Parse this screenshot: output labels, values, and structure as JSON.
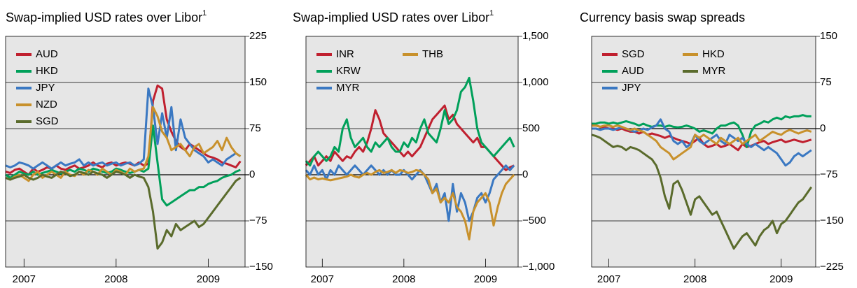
{
  "chart_data": [
    {
      "type": "line",
      "title": "Swap-implied USD rates over Libor",
      "title_note": "1",
      "x": [
        2006.8,
        2006.85,
        2006.9,
        2006.95,
        2007,
        2007.05,
        2007.1,
        2007.15,
        2007.2,
        2007.25,
        2007.3,
        2007.35,
        2007.4,
        2007.45,
        2007.5,
        2007.55,
        2007.6,
        2007.65,
        2007.7,
        2007.75,
        2007.8,
        2007.85,
        2007.9,
        2007.95,
        2008,
        2008.05,
        2008.1,
        2008.15,
        2008.2,
        2008.25,
        2008.3,
        2008.35,
        2008.4,
        2008.45,
        2008.5,
        2008.55,
        2008.6,
        2008.65,
        2008.7,
        2008.75,
        2008.8,
        2008.85,
        2008.9,
        2008.95,
        2009,
        2009.05,
        2009.1,
        2009.15,
        2009.2,
        2009.25,
        2009.3,
        2009.35
      ],
      "xlim": [
        2006.8,
        2009.4
      ],
      "xticks": [
        2007,
        2008,
        2009
      ],
      "ylim": [
        -150,
        225
      ],
      "yticks": [
        {
          "value": -150,
          "label": "−150"
        },
        {
          "value": -75,
          "label": "−75"
        },
        0,
        75,
        150,
        225
      ],
      "series": [
        {
          "name": "AUD",
          "color": "#c0202f",
          "values": [
            5,
            3,
            8,
            10,
            5,
            0,
            10,
            5,
            8,
            12,
            10,
            15,
            10,
            8,
            12,
            15,
            10,
            12,
            15,
            20,
            15,
            12,
            18,
            20,
            15,
            18,
            20,
            18,
            15,
            20,
            15,
            18,
            120,
            145,
            140,
            90,
            70,
            55,
            45,
            40,
            50,
            45,
            40,
            35,
            30,
            28,
            25,
            20,
            18,
            15,
            12,
            22
          ]
        },
        {
          "name": "HKD",
          "color": "#00a05a",
          "values": [
            0,
            -5,
            0,
            5,
            2,
            0,
            5,
            0,
            3,
            5,
            8,
            5,
            2,
            5,
            8,
            5,
            10,
            8,
            5,
            10,
            8,
            5,
            3,
            5,
            10,
            8,
            5,
            3,
            5,
            8,
            5,
            10,
            80,
            20,
            -40,
            -50,
            -45,
            -40,
            -35,
            -30,
            -25,
            -25,
            -20,
            -20,
            -15,
            -12,
            -10,
            -5,
            -2,
            0,
            5,
            8
          ]
        },
        {
          "name": "JPY",
          "color": "#3a78c2",
          "values": [
            15,
            12,
            15,
            20,
            18,
            15,
            10,
            15,
            20,
            15,
            10,
            15,
            20,
            15,
            18,
            20,
            25,
            15,
            20,
            15,
            18,
            20,
            15,
            18,
            20,
            15,
            18,
            20,
            15,
            18,
            25,
            140,
            110,
            50,
            100,
            60,
            110,
            40,
            90,
            60,
            50,
            40,
            35,
            30,
            20,
            25,
            20,
            15,
            25,
            30,
            35,
            30
          ]
        },
        {
          "name": "NZD",
          "color": "#c8912c",
          "values": [
            -5,
            -8,
            -3,
            0,
            -5,
            -10,
            0,
            5,
            -5,
            0,
            5,
            0,
            -5,
            5,
            0,
            -2,
            5,
            0,
            8,
            5,
            0,
            10,
            5,
            0,
            8,
            5,
            0,
            10,
            5,
            8,
            10,
            30,
            110,
            95,
            70,
            60,
            40,
            45,
            50,
            40,
            30,
            45,
            50,
            35,
            40,
            45,
            55,
            40,
            60,
            45,
            35,
            30
          ]
        },
        {
          "name": "SGD",
          "color": "#5a6b2c",
          "values": [
            -5,
            -8,
            -5,
            -3,
            0,
            -5,
            -8,
            -5,
            0,
            -3,
            -5,
            0,
            5,
            2,
            -2,
            0,
            5,
            3,
            0,
            5,
            2,
            0,
            -5,
            0,
            5,
            3,
            0,
            -5,
            0,
            -3,
            -5,
            -20,
            -60,
            -120,
            -110,
            -90,
            -100,
            -80,
            -90,
            -85,
            -80,
            -75,
            -85,
            -80,
            -70,
            -60,
            -50,
            -40,
            -30,
            -20,
            -10,
            -5
          ]
        }
      ]
    },
    {
      "type": "line",
      "title": "Swap-implied USD rates over Libor",
      "title_note": "1",
      "x": [
        2006.8,
        2006.85,
        2006.9,
        2006.95,
        2007,
        2007.05,
        2007.1,
        2007.15,
        2007.2,
        2007.25,
        2007.3,
        2007.35,
        2007.4,
        2007.45,
        2007.5,
        2007.55,
        2007.6,
        2007.65,
        2007.7,
        2007.75,
        2007.8,
        2007.85,
        2007.9,
        2007.95,
        2008,
        2008.05,
        2008.1,
        2008.15,
        2008.2,
        2008.25,
        2008.3,
        2008.35,
        2008.4,
        2008.45,
        2008.5,
        2008.55,
        2008.6,
        2008.65,
        2008.7,
        2008.75,
        2008.8,
        2008.85,
        2008.9,
        2008.95,
        2009,
        2009.05,
        2009.1,
        2009.15,
        2009.2,
        2009.25,
        2009.3,
        2009.35
      ],
      "xlim": [
        2006.8,
        2009.4
      ],
      "xticks": [
        2007,
        2008,
        2009
      ],
      "ylim": [
        -1000,
        1500
      ],
      "yticks": [
        {
          "value": -1000,
          "label": "−1,000"
        },
        {
          "value": -500,
          "label": "−500"
        },
        0,
        500,
        {
          "value": 1000,
          "label": "1,000"
        },
        {
          "value": 1500,
          "label": "1,500"
        }
      ],
      "series": [
        {
          "name": "INR",
          "color": "#c0202f",
          "values": [
            100,
            150,
            200,
            100,
            150,
            200,
            150,
            250,
            200,
            150,
            200,
            180,
            250,
            300,
            250,
            350,
            500,
            700,
            600,
            450,
            400,
            350,
            300,
            250,
            200,
            250,
            200,
            250,
            300,
            400,
            500,
            600,
            650,
            700,
            750,
            600,
            650,
            550,
            500,
            450,
            400,
            350,
            400,
            300,
            300,
            250,
            200,
            150,
            100,
            50,
            80,
            100
          ]
        },
        {
          "name": "KRW",
          "color": "#00a05a",
          "values": [
            150,
            100,
            200,
            250,
            200,
            150,
            200,
            300,
            250,
            500,
            600,
            400,
            300,
            350,
            400,
            300,
            250,
            350,
            300,
            350,
            400,
            300,
            250,
            250,
            350,
            300,
            400,
            350,
            500,
            600,
            450,
            400,
            350,
            500,
            700,
            550,
            600,
            700,
            900,
            950,
            1050,
            800,
            500,
            350,
            300,
            250,
            200,
            250,
            300,
            350,
            400,
            300
          ]
        },
        {
          "name": "MYR",
          "color": "#3a78c2",
          "values": [
            50,
            0,
            100,
            0,
            50,
            -50,
            50,
            0,
            100,
            50,
            0,
            50,
            100,
            50,
            0,
            50,
            100,
            50,
            0,
            50,
            0,
            50,
            0,
            0,
            50,
            0,
            -50,
            0,
            50,
            0,
            -100,
            -200,
            -100,
            -300,
            -200,
            -500,
            -100,
            -400,
            -200,
            -300,
            -500,
            -400,
            -250,
            -200,
            -300,
            -200,
            -50,
            0,
            50,
            100,
            50,
            100
          ]
        },
        {
          "name": "THB",
          "color": "#c8912c",
          "values": [
            0,
            -50,
            -30,
            -50,
            -40,
            -50,
            -60,
            -50,
            -40,
            -30,
            -20,
            0,
            -20,
            -30,
            0,
            20,
            0,
            30,
            50,
            20,
            30,
            50,
            20,
            50,
            40,
            20,
            30,
            50,
            40,
            0,
            -50,
            -200,
            -150,
            -300,
            -250,
            -300,
            -200,
            -350,
            -400,
            -500,
            -700,
            -400,
            -300,
            -250,
            -200,
            -300,
            -550,
            -350,
            -200,
            -100,
            -50,
            0
          ]
        }
      ]
    },
    {
      "type": "line",
      "title": "Currency basis swap spreads",
      "x": [
        2006.8,
        2006.85,
        2006.9,
        2006.95,
        2007,
        2007.05,
        2007.1,
        2007.15,
        2007.2,
        2007.25,
        2007.3,
        2007.35,
        2007.4,
        2007.45,
        2007.5,
        2007.55,
        2007.6,
        2007.65,
        2007.7,
        2007.75,
        2007.8,
        2007.85,
        2007.9,
        2007.95,
        2008,
        2008.05,
        2008.1,
        2008.15,
        2008.2,
        2008.25,
        2008.3,
        2008.35,
        2008.4,
        2008.45,
        2008.5,
        2008.55,
        2008.6,
        2008.65,
        2008.7,
        2008.75,
        2008.8,
        2008.85,
        2008.9,
        2008.95,
        2009,
        2009.05,
        2009.1,
        2009.15,
        2009.2,
        2009.25,
        2009.3,
        2009.35
      ],
      "xlim": [
        2006.8,
        2009.4
      ],
      "xticks": [
        2007,
        2008,
        2009
      ],
      "ylim": [
        -225,
        150
      ],
      "yticks": [
        {
          "value": -225,
          "label": "−225"
        },
        {
          "value": -150,
          "label": "−150"
        },
        {
          "value": -75,
          "label": "−75"
        },
        0,
        75,
        150
      ],
      "series": [
        {
          "name": "SGD",
          "color": "#c0202f",
          "values": [
            5,
            5,
            3,
            2,
            0,
            0,
            -2,
            0,
            -3,
            -5,
            -5,
            -8,
            -5,
            -10,
            -8,
            -10,
            -12,
            -15,
            -12,
            -15,
            -18,
            -20,
            -22,
            -25,
            -20,
            -15,
            -25,
            -30,
            -28,
            -25,
            -30,
            -28,
            -25,
            -30,
            -35,
            -25,
            -30,
            -28,
            -25,
            -22,
            -20,
            -25,
            -22,
            -20,
            -18,
            -22,
            -20,
            -18,
            -20,
            -22,
            -20,
            -18
          ]
        },
        {
          "name": "AUD",
          "color": "#00a05a",
          "values": [
            8,
            8,
            10,
            10,
            8,
            10,
            8,
            10,
            12,
            10,
            8,
            5,
            8,
            5,
            3,
            5,
            5,
            3,
            5,
            3,
            2,
            3,
            5,
            3,
            0,
            -5,
            -3,
            -5,
            -8,
            0,
            5,
            5,
            8,
            10,
            5,
            -10,
            -30,
            -5,
            5,
            8,
            12,
            10,
            15,
            18,
            15,
            20,
            18,
            20,
            20,
            22,
            20,
            20
          ]
        },
        {
          "name": "JPY",
          "color": "#3a78c2",
          "values": [
            0,
            0,
            -2,
            0,
            0,
            -2,
            0,
            2,
            0,
            -3,
            -5,
            -3,
            0,
            -2,
            2,
            5,
            15,
            0,
            -5,
            -20,
            -25,
            -20,
            -30,
            -25,
            -10,
            -20,
            -25,
            -20,
            -15,
            -10,
            -20,
            -25,
            -10,
            -15,
            -20,
            -15,
            -25,
            -30,
            -25,
            -30,
            -35,
            -30,
            -35,
            -40,
            -50,
            -60,
            -55,
            -45,
            -40,
            -45,
            -40,
            -35
          ]
        },
        {
          "name": "HKD",
          "color": "#c8912c",
          "values": [
            5,
            5,
            3,
            5,
            5,
            3,
            5,
            3,
            0,
            -2,
            0,
            -3,
            -5,
            -10,
            -15,
            -20,
            -30,
            -35,
            -40,
            -50,
            -45,
            -40,
            -35,
            -30,
            -10,
            -15,
            -10,
            -15,
            -20,
            -25,
            -15,
            -20,
            -25,
            -20,
            -15,
            -25,
            -20,
            -15,
            -10,
            -20,
            -15,
            -10,
            -5,
            -8,
            -10,
            -5,
            -2,
            -5,
            -8,
            -5,
            -3,
            -5
          ]
        },
        {
          "name": "MYR",
          "color": "#5a6b2c",
          "values": [
            -10,
            -12,
            -15,
            -20,
            -25,
            -30,
            -28,
            -30,
            -35,
            -30,
            -32,
            -35,
            -40,
            -45,
            -50,
            -60,
            -80,
            -110,
            -130,
            -90,
            -85,
            -100,
            -120,
            -140,
            -115,
            -110,
            -120,
            -130,
            -140,
            -135,
            -150,
            -165,
            -180,
            -195,
            -185,
            -175,
            -170,
            -180,
            -190,
            -175,
            -165,
            -160,
            -150,
            -170,
            -155,
            -150,
            -140,
            -130,
            -120,
            -115,
            -105,
            -95
          ]
        }
      ]
    }
  ]
}
